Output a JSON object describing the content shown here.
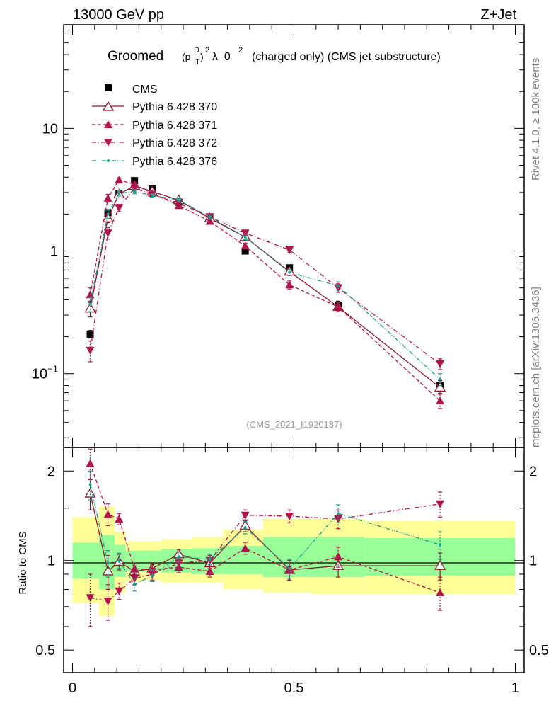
{
  "header": {
    "left": "13000 GeV pp",
    "right": "Z+Jet"
  },
  "title": {
    "prefix": "Groomed",
    "p": "(p",
    "sup_D": "D",
    "sub_T": "T",
    "close": ")",
    "sup_2": "2",
    "lambda": "λ_0",
    "sup_lambda": "2",
    "suffix": "(charged only) (CMS jet substructure)"
  },
  "side_labels": {
    "rivet": "Rivet 4.1.0, ≥ 100k events",
    "mcplots": "mcplots.cern.ch [arXiv:1306.3436]"
  },
  "analysis_label": "(CMS_2021_I1920187)",
  "colors": {
    "cms": "#000000",
    "p370": "#8b1a2b",
    "p371": "#b0154d",
    "p372": "#b0154d",
    "p376": "#179c8c",
    "band_inner": "#99ff99",
    "band_outer": "#ffff99"
  },
  "chart_data": [
    {
      "type": "scatter",
      "panel": "main",
      "yscale": "log",
      "xlim": [
        -0.02,
        1.02
      ],
      "ylim": [
        0.025,
        70
      ],
      "ytick_labels": [
        "10^-1",
        "1",
        "10"
      ],
      "xlabel": "",
      "ylabel": "",
      "legend_position": "top-left",
      "x": [
        0.04,
        0.08,
        0.105,
        0.14,
        0.18,
        0.24,
        0.31,
        0.39,
        0.49,
        0.6,
        0.83
      ],
      "series": [
        {
          "name": "CMS",
          "key": "cms",
          "marker": "square",
          "values": [
            0.21,
            2.05,
            2.95,
            3.75,
            3.2,
            2.5,
            1.85,
            1.0,
            0.73,
            0.36,
            0.08
          ],
          "errors": [
            0.015,
            0.1,
            0.12,
            0.1,
            0.1,
            0.08,
            0.06,
            0.04,
            0.04,
            0.03,
            0.008
          ]
        },
        {
          "name": "Pythia 6.428 370",
          "key": "p370",
          "marker": "triangle-up-open",
          "dash": "solid",
          "values": [
            0.34,
            1.85,
            2.9,
            3.4,
            3.05,
            2.6,
            1.85,
            1.3,
            0.68,
            0.35,
            0.077
          ],
          "errors": [
            0.05,
            0.15,
            0.15,
            0.12,
            0.1,
            0.08,
            0.07,
            0.06,
            0.04,
            0.03,
            0.008
          ]
        },
        {
          "name": "Pythia 6.428 371",
          "key": "p371",
          "marker": "triangle-up",
          "dash": "dashed",
          "values": [
            0.44,
            2.7,
            3.8,
            3.5,
            2.95,
            2.35,
            1.75,
            1.1,
            0.53,
            0.35,
            0.06
          ],
          "errors": [
            0.06,
            0.2,
            0.15,
            0.12,
            0.1,
            0.08,
            0.07,
            0.06,
            0.04,
            0.03,
            0.008
          ]
        },
        {
          "name": "Pythia 6.428 372",
          "key": "p372",
          "marker": "triangle-down",
          "dash": "dashdot",
          "values": [
            0.155,
            1.4,
            2.25,
            3.25,
            2.9,
            2.45,
            1.9,
            1.4,
            1.02,
            0.5,
            0.12
          ],
          "errors": [
            0.03,
            0.15,
            0.15,
            0.12,
            0.1,
            0.08,
            0.07,
            0.06,
            0.05,
            0.04,
            0.012
          ]
        },
        {
          "name": "Pythia 6.428 376",
          "key": "p376",
          "marker": "dot",
          "dash": "dashdotdot",
          "values": [
            0.37,
            2.0,
            2.95,
            3.05,
            2.85,
            2.6,
            1.9,
            1.3,
            0.67,
            0.52,
            0.09
          ],
          "errors": [
            0.05,
            0.15,
            0.15,
            0.12,
            0.1,
            0.08,
            0.07,
            0.06,
            0.04,
            0.04,
            0.01
          ]
        }
      ]
    },
    {
      "type": "line",
      "panel": "ratio",
      "yscale": "log",
      "xlim": [
        -0.02,
        1.02
      ],
      "ylim": [
        0.42,
        2.4
      ],
      "ylabel": "Ratio to CMS",
      "ytick_labels": [
        "0.5",
        "1",
        "2"
      ],
      "xtick_labels": [
        "0",
        "0.5",
        "1"
      ],
      "x": [
        0.04,
        0.08,
        0.105,
        0.14,
        0.18,
        0.24,
        0.31,
        0.39,
        0.49,
        0.6,
        0.83
      ],
      "bands": {
        "bin_edges": [
          0.0,
          0.06,
          0.095,
          0.12,
          0.16,
          0.2,
          0.27,
          0.34,
          0.43,
          0.54,
          0.66,
          1.0
        ],
        "inner_low": [
          0.87,
          0.8,
          0.88,
          0.92,
          0.92,
          0.91,
          0.9,
          0.9,
          0.88,
          0.88,
          0.89
        ],
        "inner_high": [
          1.15,
          1.22,
          1.13,
          1.08,
          1.08,
          1.09,
          1.1,
          1.12,
          1.2,
          1.2,
          1.19
        ],
        "outer_low": [
          0.72,
          0.65,
          0.78,
          0.85,
          0.86,
          0.84,
          0.84,
          0.8,
          0.78,
          0.77,
          0.77
        ],
        "outer_high": [
          1.4,
          1.52,
          1.25,
          1.16,
          1.16,
          1.18,
          1.2,
          1.27,
          1.38,
          1.38,
          1.36
        ]
      },
      "series": [
        {
          "name": "Pythia 6.428 370",
          "key": "p370",
          "marker": "triangle-up-open",
          "dash": "solid",
          "values": [
            1.68,
            0.92,
            0.99,
            0.92,
            0.94,
            1.05,
            0.98,
            1.31,
            0.93,
            0.96,
            0.96
          ],
          "errors": [
            0.2,
            0.12,
            0.06,
            0.04,
            0.04,
            0.04,
            0.04,
            0.06,
            0.07,
            0.08,
            0.1
          ]
        },
        {
          "name": "Pythia 6.428 371",
          "key": "p371",
          "marker": "triangle-up",
          "dash": "dashed",
          "values": [
            2.12,
            1.43,
            1.38,
            0.94,
            0.93,
            0.95,
            0.92,
            1.1,
            0.93,
            1.03,
            0.78
          ],
          "errors": [
            0.25,
            0.12,
            0.06,
            0.04,
            0.04,
            0.04,
            0.04,
            0.05,
            0.07,
            0.08,
            0.1
          ]
        },
        {
          "name": "Pythia 6.428 372",
          "key": "p372",
          "marker": "triangle-down",
          "dash": "dashdot",
          "values": [
            0.75,
            0.73,
            0.79,
            0.87,
            0.9,
            0.98,
            1.0,
            1.42,
            1.41,
            1.38,
            1.55
          ],
          "errors": [
            0.15,
            0.1,
            0.05,
            0.04,
            0.04,
            0.04,
            0.04,
            0.06,
            0.07,
            0.1,
            0.15
          ]
        },
        {
          "name": "Pythia 6.428 376",
          "key": "p376",
          "marker": "dot",
          "dash": "dashdotdot",
          "values": [
            1.8,
            0.98,
            1.0,
            0.83,
            0.89,
            1.03,
            1.01,
            1.29,
            0.94,
            1.44,
            1.13
          ],
          "errors": [
            0.2,
            0.1,
            0.06,
            0.04,
            0.04,
            0.04,
            0.04,
            0.06,
            0.07,
            0.1,
            0.12
          ]
        }
      ]
    }
  ]
}
